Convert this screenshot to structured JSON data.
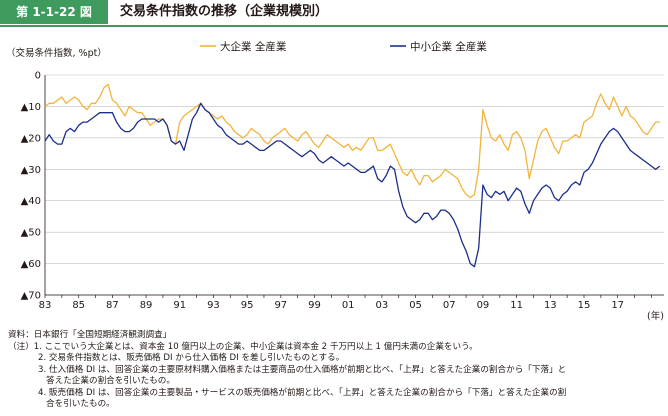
{
  "header": {
    "badge": "第 1-1-22 図",
    "title": "交易条件指数の推移（企業規模別）"
  },
  "notes": {
    "source": "資料：日本銀行「全国短期経済観測調査」",
    "n1": "（注）1. ここでいう大企業とは、資本金 10 億円以上の企業、中小企業は資本金 2 千万円以上 1 億円未満の企業をいう。",
    "n2": "2. 交易条件指数とは、販売価格 DI から仕入価格 DI を差し引いたものとする。",
    "n3a": "3. 仕入価格 DI は、回答企業の主要原材料購入価格または主要商品の仕入価格が前期と比べ、「上昇」と答えた企業の割合から「下落」と",
    "n3b": "答えた企業の割合を引いたもの。",
    "n4a": "4. 販売価格 DI は、回答企業の主要製品・サービスの販売価格が前期と比べ、「上昇」と答えた企業の割合から「下落」と答えた企業の割",
    "n4b": "合を引いたもの。"
  },
  "chart_data": {
    "type": "line",
    "ylabel": "（交易条件指数, %pt）",
    "xlabel": "(年)",
    "ylim": [
      -70,
      0
    ],
    "yticks": [
      "0",
      "▲10",
      "▲20",
      "▲30",
      "▲40",
      "▲50",
      "▲60",
      "▲70"
    ],
    "xlim": [
      1983,
      2019.75
    ],
    "xticks": [
      "83",
      "85",
      "87",
      "89",
      "91",
      "93",
      "95",
      "97",
      "99",
      "01",
      "03",
      "05",
      "07",
      "09",
      "11",
      "13",
      "15",
      "17"
    ],
    "legend_position": "top",
    "colors": {
      "large": "#f2b43c",
      "small": "#1b2f8a"
    },
    "series": [
      {
        "name": "大企業 全産業",
        "color": "#f2b43c",
        "points": [
          [
            1983.0,
            -10
          ],
          [
            1983.25,
            -9
          ],
          [
            1983.5,
            -9
          ],
          [
            1983.75,
            -8
          ],
          [
            1984.0,
            -7
          ],
          [
            1984.25,
            -9
          ],
          [
            1984.5,
            -8
          ],
          [
            1984.75,
            -7
          ],
          [
            1985.0,
            -8
          ],
          [
            1985.25,
            -10
          ],
          [
            1985.5,
            -11
          ],
          [
            1985.75,
            -9
          ],
          [
            1986.0,
            -9
          ],
          [
            1986.25,
            -7
          ],
          [
            1986.5,
            -4
          ],
          [
            1986.75,
            -3
          ],
          [
            1987.0,
            -8
          ],
          [
            1987.25,
            -9
          ],
          [
            1987.5,
            -11
          ],
          [
            1987.75,
            -13
          ],
          [
            1988.0,
            -10
          ],
          [
            1988.25,
            -11
          ],
          [
            1988.5,
            -12
          ],
          [
            1988.75,
            -12
          ],
          [
            1989.0,
            -14
          ],
          [
            1989.25,
            -16
          ],
          [
            1989.5,
            -15
          ],
          [
            1989.75,
            -14
          ],
          [
            1990.0,
            -14
          ],
          [
            1990.25,
            -16
          ],
          [
            1990.5,
            -21
          ],
          [
            1990.75,
            -22
          ],
          [
            1991.0,
            -15
          ],
          [
            1991.25,
            -13
          ],
          [
            1991.5,
            -12
          ],
          [
            1991.75,
            -11
          ],
          [
            1992.0,
            -10
          ],
          [
            1992.25,
            -9
          ],
          [
            1992.5,
            -11
          ],
          [
            1992.75,
            -12
          ],
          [
            1993.0,
            -13
          ],
          [
            1993.25,
            -14
          ],
          [
            1993.5,
            -13
          ],
          [
            1993.75,
            -15
          ],
          [
            1994.0,
            -16
          ],
          [
            1994.25,
            -18
          ],
          [
            1994.5,
            -19
          ],
          [
            1994.75,
            -20
          ],
          [
            1995.0,
            -19
          ],
          [
            1995.25,
            -17
          ],
          [
            1995.5,
            -18
          ],
          [
            1995.75,
            -19
          ],
          [
            1996.0,
            -21
          ],
          [
            1996.25,
            -22
          ],
          [
            1996.5,
            -20
          ],
          [
            1996.75,
            -19
          ],
          [
            1997.0,
            -18
          ],
          [
            1997.25,
            -17
          ],
          [
            1997.5,
            -19
          ],
          [
            1997.75,
            -20
          ],
          [
            1998.0,
            -21
          ],
          [
            1998.25,
            -19
          ],
          [
            1998.5,
            -18
          ],
          [
            1998.75,
            -20
          ],
          [
            1999.0,
            -22
          ],
          [
            1999.25,
            -23
          ],
          [
            1999.5,
            -21
          ],
          [
            1999.75,
            -19
          ],
          [
            2000.0,
            -20
          ],
          [
            2000.25,
            -21
          ],
          [
            2000.5,
            -22
          ],
          [
            2000.75,
            -23
          ],
          [
            2001.0,
            -22
          ],
          [
            2001.25,
            -24
          ],
          [
            2001.5,
            -23
          ],
          [
            2001.75,
            -24
          ],
          [
            2002.0,
            -22
          ],
          [
            2002.25,
            -20
          ],
          [
            2002.5,
            -20
          ],
          [
            2002.75,
            -24
          ],
          [
            2003.0,
            -24
          ],
          [
            2003.25,
            -23
          ],
          [
            2003.5,
            -22
          ],
          [
            2003.75,
            -25
          ],
          [
            2004.0,
            -28
          ],
          [
            2004.25,
            -31
          ],
          [
            2004.5,
            -32
          ],
          [
            2004.75,
            -30
          ],
          [
            2005.0,
            -33
          ],
          [
            2005.25,
            -35
          ],
          [
            2005.5,
            -32
          ],
          [
            2005.75,
            -32
          ],
          [
            2006.0,
            -34
          ],
          [
            2006.25,
            -33
          ],
          [
            2006.5,
            -32
          ],
          [
            2006.75,
            -30
          ],
          [
            2007.0,
            -31
          ],
          [
            2007.25,
            -32
          ],
          [
            2007.5,
            -33
          ],
          [
            2007.75,
            -36
          ],
          [
            2008.0,
            -38
          ],
          [
            2008.25,
            -39
          ],
          [
            2008.5,
            -38
          ],
          [
            2008.75,
            -30
          ],
          [
            2009.0,
            -11
          ],
          [
            2009.25,
            -16
          ],
          [
            2009.5,
            -20
          ],
          [
            2009.75,
            -21
          ],
          [
            2010.0,
            -19
          ],
          [
            2010.25,
            -22
          ],
          [
            2010.5,
            -24
          ],
          [
            2010.75,
            -19
          ],
          [
            2011.0,
            -18
          ],
          [
            2011.25,
            -20
          ],
          [
            2011.5,
            -24
          ],
          [
            2011.75,
            -33
          ],
          [
            2012.0,
            -27
          ],
          [
            2012.25,
            -21
          ],
          [
            2012.5,
            -18
          ],
          [
            2012.75,
            -17
          ],
          [
            2013.0,
            -20
          ],
          [
            2013.25,
            -23
          ],
          [
            2013.5,
            -25
          ],
          [
            2013.75,
            -21
          ],
          [
            2014.0,
            -21
          ],
          [
            2014.25,
            -20
          ],
          [
            2014.5,
            -19
          ],
          [
            2014.75,
            -20
          ],
          [
            2015.0,
            -15
          ],
          [
            2015.25,
            -14
          ],
          [
            2015.5,
            -13
          ],
          [
            2015.75,
            -9
          ],
          [
            2016.0,
            -6
          ],
          [
            2016.25,
            -9
          ],
          [
            2016.5,
            -11
          ],
          [
            2016.75,
            -7
          ],
          [
            2017.0,
            -10
          ],
          [
            2017.25,
            -13
          ],
          [
            2017.5,
            -10
          ],
          [
            2017.75,
            -13
          ],
          [
            2018.0,
            -14
          ],
          [
            2018.25,
            -16
          ],
          [
            2018.5,
            -18
          ],
          [
            2018.75,
            -19
          ],
          [
            2019.0,
            -17
          ],
          [
            2019.25,
            -15
          ],
          [
            2019.5,
            -15
          ]
        ]
      },
      {
        "name": "中小企業 全産業",
        "color": "#1b2f8a",
        "points": [
          [
            1983.0,
            -21
          ],
          [
            1983.25,
            -19
          ],
          [
            1983.5,
            -21
          ],
          [
            1983.75,
            -22
          ],
          [
            1984.0,
            -22
          ],
          [
            1984.25,
            -18
          ],
          [
            1984.5,
            -17
          ],
          [
            1984.75,
            -18
          ],
          [
            1985.0,
            -16
          ],
          [
            1985.25,
            -15
          ],
          [
            1985.5,
            -15
          ],
          [
            1985.75,
            -14
          ],
          [
            1986.0,
            -13
          ],
          [
            1986.25,
            -12
          ],
          [
            1986.5,
            -12
          ],
          [
            1986.75,
            -12
          ],
          [
            1987.0,
            -12
          ],
          [
            1987.25,
            -15
          ],
          [
            1987.5,
            -17
          ],
          [
            1987.75,
            -18
          ],
          [
            1988.0,
            -18
          ],
          [
            1988.25,
            -17
          ],
          [
            1988.5,
            -15
          ],
          [
            1988.75,
            -14
          ],
          [
            1989.0,
            -14
          ],
          [
            1989.25,
            -14
          ],
          [
            1989.5,
            -14
          ],
          [
            1989.75,
            -15
          ],
          [
            1990.0,
            -14
          ],
          [
            1990.25,
            -16
          ],
          [
            1990.5,
            -21
          ],
          [
            1990.75,
            -22
          ],
          [
            1991.0,
            -21
          ],
          [
            1991.25,
            -24
          ],
          [
            1991.5,
            -19
          ],
          [
            1991.75,
            -14
          ],
          [
            1992.0,
            -12
          ],
          [
            1992.25,
            -9
          ],
          [
            1992.5,
            -11
          ],
          [
            1992.75,
            -12
          ],
          [
            1993.0,
            -14
          ],
          [
            1993.25,
            -16
          ],
          [
            1993.5,
            -17
          ],
          [
            1993.75,
            -19
          ],
          [
            1994.0,
            -20
          ],
          [
            1994.25,
            -21
          ],
          [
            1994.5,
            -22
          ],
          [
            1994.75,
            -22
          ],
          [
            1995.0,
            -21
          ],
          [
            1995.25,
            -22
          ],
          [
            1995.5,
            -23
          ],
          [
            1995.75,
            -24
          ],
          [
            1996.0,
            -24
          ],
          [
            1996.25,
            -23
          ],
          [
            1996.5,
            -22
          ],
          [
            1996.75,
            -21
          ],
          [
            1997.0,
            -21
          ],
          [
            1997.25,
            -22
          ],
          [
            1997.5,
            -23
          ],
          [
            1997.75,
            -24
          ],
          [
            1998.0,
            -25
          ],
          [
            1998.25,
            -26
          ],
          [
            1998.5,
            -25
          ],
          [
            1998.75,
            -24
          ],
          [
            1999.0,
            -25
          ],
          [
            1999.25,
            -27
          ],
          [
            1999.5,
            -28
          ],
          [
            1999.75,
            -27
          ],
          [
            2000.0,
            -26
          ],
          [
            2000.25,
            -27
          ],
          [
            2000.5,
            -28
          ],
          [
            2000.75,
            -29
          ],
          [
            2001.0,
            -28
          ],
          [
            2001.25,
            -29
          ],
          [
            2001.5,
            -30
          ],
          [
            2001.75,
            -31
          ],
          [
            2002.0,
            -31
          ],
          [
            2002.25,
            -30
          ],
          [
            2002.5,
            -29
          ],
          [
            2002.75,
            -33
          ],
          [
            2003.0,
            -34
          ],
          [
            2003.25,
            -32
          ],
          [
            2003.5,
            -29
          ],
          [
            2003.75,
            -30
          ],
          [
            2004.0,
            -37
          ],
          [
            2004.25,
            -42
          ],
          [
            2004.5,
            -45
          ],
          [
            2004.75,
            -46
          ],
          [
            2005.0,
            -47
          ],
          [
            2005.25,
            -46
          ],
          [
            2005.5,
            -44
          ],
          [
            2005.75,
            -44
          ],
          [
            2006.0,
            -46
          ],
          [
            2006.25,
            -45
          ],
          [
            2006.5,
            -43
          ],
          [
            2006.75,
            -43
          ],
          [
            2007.0,
            -44
          ],
          [
            2007.25,
            -46
          ],
          [
            2007.5,
            -49
          ],
          [
            2007.75,
            -53
          ],
          [
            2008.0,
            -56
          ],
          [
            2008.25,
            -60
          ],
          [
            2008.5,
            -61
          ],
          [
            2008.75,
            -55
          ],
          [
            2009.0,
            -35
          ],
          [
            2009.25,
            -38
          ],
          [
            2009.5,
            -39
          ],
          [
            2009.75,
            -37
          ],
          [
            2010.0,
            -38
          ],
          [
            2010.25,
            -37
          ],
          [
            2010.5,
            -40
          ],
          [
            2010.75,
            -38
          ],
          [
            2011.0,
            -36
          ],
          [
            2011.25,
            -37
          ],
          [
            2011.5,
            -41
          ],
          [
            2011.75,
            -44
          ],
          [
            2012.0,
            -40
          ],
          [
            2012.25,
            -38
          ],
          [
            2012.5,
            -36
          ],
          [
            2012.75,
            -35
          ],
          [
            2013.0,
            -36
          ],
          [
            2013.25,
            -39
          ],
          [
            2013.5,
            -40
          ],
          [
            2013.75,
            -38
          ],
          [
            2014.0,
            -37
          ],
          [
            2014.25,
            -35
          ],
          [
            2014.5,
            -34
          ],
          [
            2014.75,
            -35
          ],
          [
            2015.0,
            -31
          ],
          [
            2015.25,
            -30
          ],
          [
            2015.5,
            -28
          ],
          [
            2015.75,
            -25
          ],
          [
            2016.0,
            -22
          ],
          [
            2016.25,
            -20
          ],
          [
            2016.5,
            -18
          ],
          [
            2016.75,
            -17
          ],
          [
            2017.0,
            -18
          ],
          [
            2017.25,
            -20
          ],
          [
            2017.5,
            -22
          ],
          [
            2017.75,
            -24
          ],
          [
            2018.0,
            -25
          ],
          [
            2018.25,
            -26
          ],
          [
            2018.5,
            -27
          ],
          [
            2018.75,
            -28
          ],
          [
            2019.0,
            -29
          ],
          [
            2019.25,
            -30
          ],
          [
            2019.5,
            -29
          ]
        ]
      }
    ]
  }
}
